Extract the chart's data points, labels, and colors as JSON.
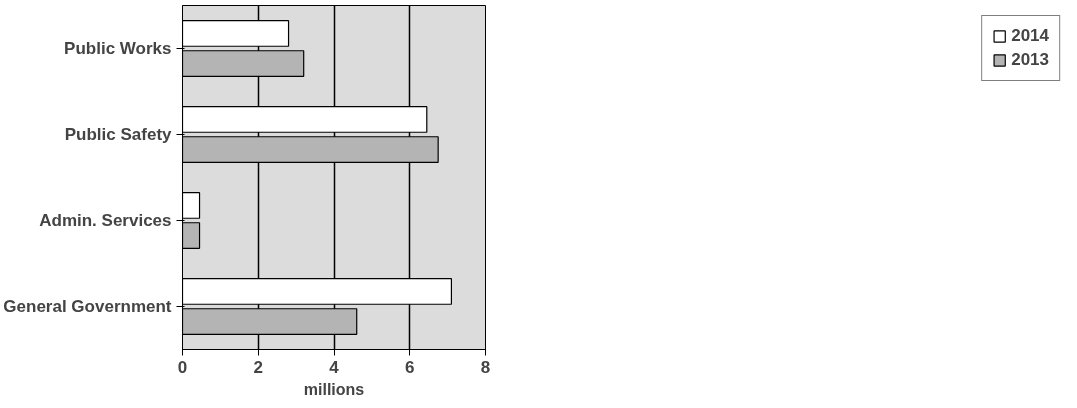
{
  "chart_data": {
    "type": "bar",
    "orientation": "horizontal",
    "xlabel": "millions",
    "categories": [
      "Public Works",
      "Public Safety",
      "Admin. Services",
      "General Government"
    ],
    "series": [
      {
        "name": "2014",
        "color": "#ffffff",
        "values": [
          2.8,
          6.45,
          0.45,
          7.1
        ]
      },
      {
        "name": "2013",
        "color": "#b4b4b4",
        "values": [
          3.2,
          6.75,
          0.45,
          4.6
        ]
      }
    ],
    "xlim": [
      0,
      8
    ],
    "xticks": [
      0,
      2,
      4,
      6,
      8
    ],
    "grid": "x",
    "legend": "right"
  }
}
